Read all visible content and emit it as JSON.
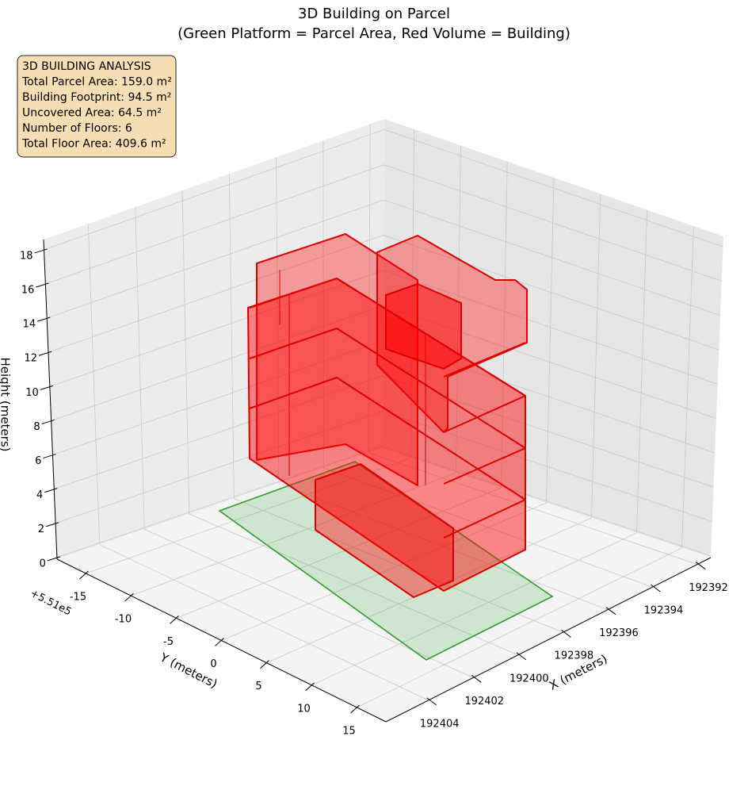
{
  "chart_data": {
    "type": "3d-polygons",
    "title": "3D Building on Parcel",
    "subtitle": "(Green Platform = Parcel Area, Red Volume = Building)",
    "xlabel": "X (meters)",
    "ylabel": "Y (meters)",
    "zlabel": "Height (meters)",
    "xlim": [
      192391.4,
      192405.9
    ],
    "xticks": [
      192392,
      192394,
      192396,
      192398,
      192400,
      192402,
      192404
    ],
    "ylim": [
      -18.2,
      18.2
    ],
    "yticks": [
      -15,
      -10,
      -5,
      0,
      5,
      10,
      15
    ],
    "y_offset_label": "+5.51e5",
    "zlim": [
      -0.1,
      18.6
    ],
    "zticks": [
      0,
      2,
      4,
      6,
      8,
      10,
      12,
      14,
      16,
      18
    ],
    "grid": true,
    "parcel_color": "#2ca02c",
    "building_color": "#ff0000",
    "annotation": [
      "3D BUILDING ANALYSIS",
      "Total Parcel Area: 159.0 m²",
      "Building Footprint: 94.5 m²",
      "Uncovered Area: 64.5 m²",
      "Number of Floors: 6",
      "Total Floor Area: 409.6 m²"
    ]
  }
}
